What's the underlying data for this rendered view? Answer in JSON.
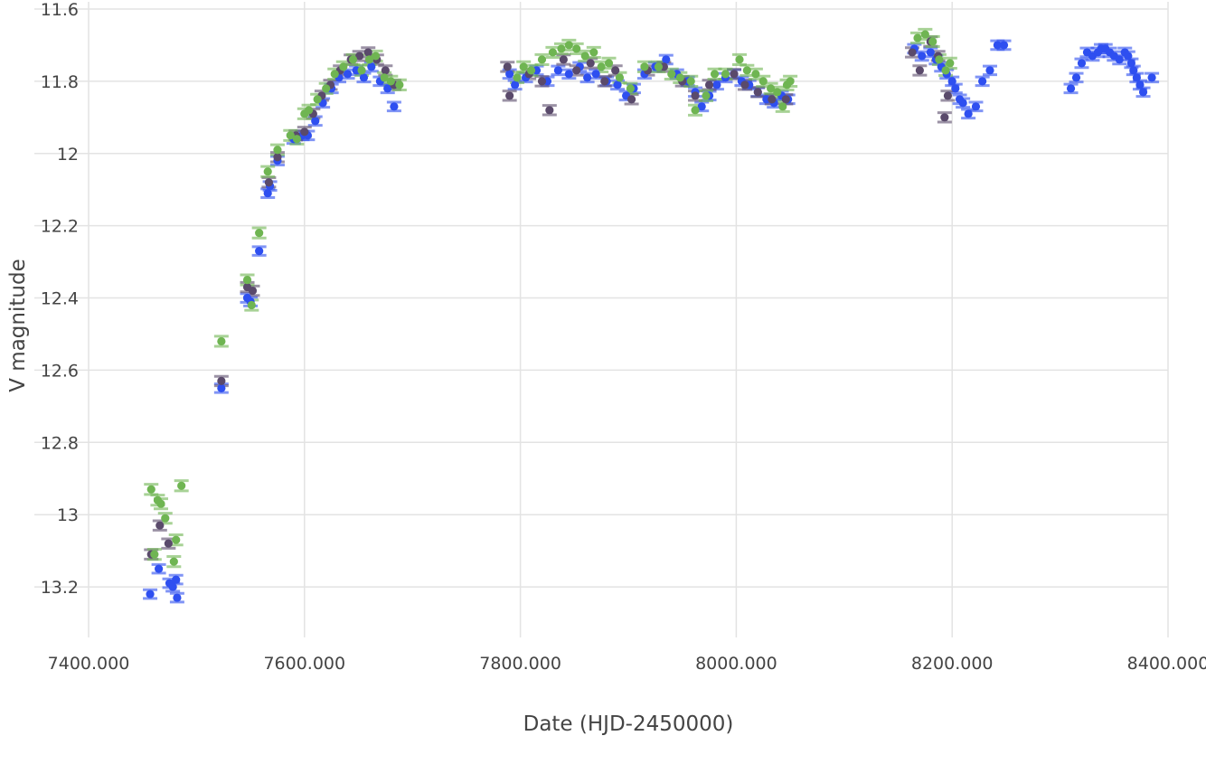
{
  "chart_data": {
    "type": "scatter",
    "title": "",
    "xlabel": "Date (HJD-2450000)",
    "ylabel": "V magnitude",
    "xlim": [
      7400,
      8400
    ],
    "ylim": [
      13.34,
      11.58
    ],
    "y_reversed": true,
    "grid": true,
    "legend": "none",
    "error_bars": true,
    "x_ticks": [
      7400,
      7600,
      7800,
      8000,
      8200,
      8400
    ],
    "x_tick_labels": [
      "7400.000",
      "7600.000",
      "7800.000",
      "8000.000",
      "8200.000",
      "8400.000"
    ],
    "y_ticks": [
      11.6,
      11.8,
      12.0,
      12.2,
      12.4,
      12.6,
      12.8,
      13.0,
      13.2
    ],
    "y_tick_labels": [
      "11.6",
      "11.8",
      "12",
      "12.2",
      "12.4",
      "12.6",
      "12.8",
      "13",
      "13.2"
    ],
    "series": [
      {
        "color": "#2e4ff0",
        "err": 0.012,
        "points": [
          [
            7457,
            13.22
          ],
          [
            7465,
            13.15
          ],
          [
            7475,
            13.19
          ],
          [
            7478,
            13.2
          ],
          [
            7481,
            13.18
          ],
          [
            7482,
            13.23
          ],
          [
            7523,
            12.65
          ],
          [
            7547,
            12.4
          ],
          [
            7550,
            12.41
          ],
          [
            7558,
            12.27
          ],
          [
            7566,
            12.11
          ],
          [
            7568,
            12.09
          ],
          [
            7575,
            12.02
          ],
          [
            7590,
            11.96
          ],
          [
            7598,
            11.95
          ],
          [
            7603,
            11.95
          ],
          [
            7610,
            11.91
          ],
          [
            7617,
            11.86
          ],
          [
            7625,
            11.82
          ],
          [
            7632,
            11.79
          ],
          [
            7640,
            11.78
          ],
          [
            7648,
            11.77
          ],
          [
            7655,
            11.79
          ],
          [
            7662,
            11.76
          ],
          [
            7670,
            11.8
          ],
          [
            7677,
            11.82
          ],
          [
            7683,
            11.87
          ],
          [
            7790,
            11.78
          ],
          [
            7795,
            11.81
          ],
          [
            7805,
            11.79
          ],
          [
            7815,
            11.77
          ],
          [
            7825,
            11.8
          ],
          [
            7835,
            11.77
          ],
          [
            7845,
            11.78
          ],
          [
            7855,
            11.76
          ],
          [
            7862,
            11.79
          ],
          [
            7870,
            11.78
          ],
          [
            7880,
            11.8
          ],
          [
            7890,
            11.81
          ],
          [
            7898,
            11.84
          ],
          [
            7905,
            11.82
          ],
          [
            7915,
            11.78
          ],
          [
            7925,
            11.76
          ],
          [
            7935,
            11.74
          ],
          [
            7945,
            11.78
          ],
          [
            7955,
            11.8
          ],
          [
            7962,
            11.83
          ],
          [
            7968,
            11.87
          ],
          [
            7975,
            11.84
          ],
          [
            7982,
            11.81
          ],
          [
            7990,
            11.79
          ],
          [
            7998,
            11.78
          ],
          [
            8005,
            11.8
          ],
          [
            8012,
            11.81
          ],
          [
            8020,
            11.83
          ],
          [
            8028,
            11.85
          ],
          [
            8035,
            11.86
          ],
          [
            8042,
            11.84
          ],
          [
            8048,
            11.85
          ],
          [
            8165,
            11.71
          ],
          [
            8172,
            11.73
          ],
          [
            8180,
            11.72
          ],
          [
            8185,
            11.74
          ],
          [
            8190,
            11.76
          ],
          [
            8195,
            11.78
          ],
          [
            8200,
            11.8
          ],
          [
            8203,
            11.82
          ],
          [
            8207,
            11.85
          ],
          [
            8210,
            11.86
          ],
          [
            8215,
            11.89
          ],
          [
            8222,
            11.87
          ],
          [
            8228,
            11.8
          ],
          [
            8235,
            11.77
          ],
          [
            8242,
            11.7
          ],
          [
            8248,
            11.7
          ],
          [
            8310,
            11.82
          ],
          [
            8315,
            11.79
          ],
          [
            8320,
            11.75
          ],
          [
            8325,
            11.72
          ],
          [
            8330,
            11.73
          ],
          [
            8335,
            11.72
          ],
          [
            8338,
            11.71
          ],
          [
            8342,
            11.71
          ],
          [
            8346,
            11.72
          ],
          [
            8350,
            11.73
          ],
          [
            8355,
            11.74
          ],
          [
            8360,
            11.72
          ],
          [
            8363,
            11.73
          ],
          [
            8366,
            11.75
          ],
          [
            8368,
            11.77
          ],
          [
            8371,
            11.79
          ],
          [
            8374,
            11.81
          ],
          [
            8377,
            11.83
          ],
          [
            8385,
            11.79
          ]
        ]
      },
      {
        "color": "#5a4a6b",
        "err": 0.013,
        "points": [
          [
            7458,
            13.11
          ],
          [
            7466,
            13.03
          ],
          [
            7474,
            13.08
          ],
          [
            7523,
            12.63
          ],
          [
            7547,
            12.37
          ],
          [
            7552,
            12.38
          ],
          [
            7567,
            12.08
          ],
          [
            7575,
            12.01
          ],
          [
            7592,
            11.95
          ],
          [
            7600,
            11.94
          ],
          [
            7608,
            11.89
          ],
          [
            7616,
            11.84
          ],
          [
            7624,
            11.81
          ],
          [
            7633,
            11.77
          ],
          [
            7643,
            11.74
          ],
          [
            7651,
            11.73
          ],
          [
            7659,
            11.72
          ],
          [
            7667,
            11.74
          ],
          [
            7675,
            11.77
          ],
          [
            7683,
            11.81
          ],
          [
            7788,
            11.76
          ],
          [
            7790,
            11.84
          ],
          [
            7808,
            11.78
          ],
          [
            7820,
            11.8
          ],
          [
            7827,
            11.88
          ],
          [
            7840,
            11.74
          ],
          [
            7852,
            11.77
          ],
          [
            7865,
            11.75
          ],
          [
            7878,
            11.8
          ],
          [
            7888,
            11.77
          ],
          [
            7903,
            11.85
          ],
          [
            7918,
            11.77
          ],
          [
            7933,
            11.76
          ],
          [
            7950,
            11.8
          ],
          [
            7962,
            11.84
          ],
          [
            7975,
            11.81
          ],
          [
            7998,
            11.78
          ],
          [
            8008,
            11.81
          ],
          [
            8020,
            11.83
          ],
          [
            8033,
            11.85
          ],
          [
            8046,
            11.85
          ],
          [
            8163,
            11.72
          ],
          [
            8170,
            11.77
          ],
          [
            8180,
            11.69
          ],
          [
            8187,
            11.73
          ],
          [
            8193,
            11.9
          ],
          [
            8196,
            11.84
          ]
        ]
      },
      {
        "color": "#6fb552",
        "err": 0.014,
        "points": [
          [
            7458,
            12.93
          ],
          [
            7461,
            13.11
          ],
          [
            7464,
            12.96
          ],
          [
            7467,
            12.97
          ],
          [
            7471,
            13.01
          ],
          [
            7479,
            13.13
          ],
          [
            7481,
            13.07
          ],
          [
            7486,
            12.92
          ],
          [
            7523,
            12.52
          ],
          [
            7547,
            12.35
          ],
          [
            7551,
            12.42
          ],
          [
            7558,
            12.22
          ],
          [
            7566,
            12.05
          ],
          [
            7575,
            11.99
          ],
          [
            7587,
            11.95
          ],
          [
            7593,
            11.96
          ],
          [
            7600,
            11.89
          ],
          [
            7604,
            11.88
          ],
          [
            7612,
            11.85
          ],
          [
            7620,
            11.82
          ],
          [
            7628,
            11.78
          ],
          [
            7636,
            11.76
          ],
          [
            7645,
            11.74
          ],
          [
            7653,
            11.77
          ],
          [
            7660,
            11.74
          ],
          [
            7666,
            11.73
          ],
          [
            7674,
            11.79
          ],
          [
            7680,
            11.8
          ],
          [
            7688,
            11.81
          ],
          [
            7797,
            11.79
          ],
          [
            7803,
            11.76
          ],
          [
            7810,
            11.77
          ],
          [
            7820,
            11.74
          ],
          [
            7830,
            11.72
          ],
          [
            7838,
            11.71
          ],
          [
            7845,
            11.7
          ],
          [
            7852,
            11.71
          ],
          [
            7860,
            11.73
          ],
          [
            7868,
            11.72
          ],
          [
            7875,
            11.76
          ],
          [
            7882,
            11.75
          ],
          [
            7892,
            11.79
          ],
          [
            7902,
            11.82
          ],
          [
            7915,
            11.76
          ],
          [
            7928,
            11.76
          ],
          [
            7940,
            11.78
          ],
          [
            7948,
            11.79
          ],
          [
            7958,
            11.8
          ],
          [
            7962,
            11.88
          ],
          [
            7972,
            11.84
          ],
          [
            7980,
            11.78
          ],
          [
            7990,
            11.78
          ],
          [
            8003,
            11.74
          ],
          [
            8010,
            11.77
          ],
          [
            8018,
            11.78
          ],
          [
            8025,
            11.8
          ],
          [
            8032,
            11.82
          ],
          [
            8038,
            11.83
          ],
          [
            8043,
            11.87
          ],
          [
            8047,
            11.81
          ],
          [
            8050,
            11.8
          ],
          [
            8168,
            11.68
          ],
          [
            8175,
            11.67
          ],
          [
            8182,
            11.69
          ],
          [
            8188,
            11.74
          ],
          [
            8194,
            11.77
          ],
          [
            8198,
            11.75
          ]
        ]
      }
    ]
  }
}
